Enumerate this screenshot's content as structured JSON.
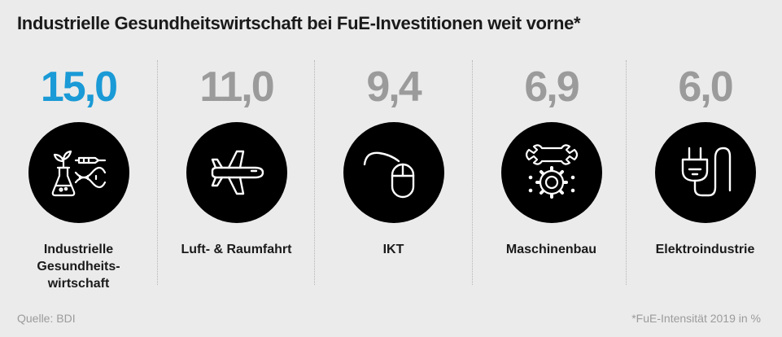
{
  "title": "Industrielle Gesundheitswirtschaft bei FuE-Investitionen weit vorne*",
  "chart_data": {
    "type": "table",
    "categories": [
      "Industrielle\nGesundheits-\nwirtschaft",
      "Luft- & Raumfahrt",
      "IKT",
      "Maschinenbau",
      "Elektroindustrie"
    ],
    "values": [
      "15,0",
      "11,0",
      "9,4",
      "6,9",
      "6,0"
    ],
    "highlight_color": "#1a9ad6",
    "value_color": "#9b9b9b"
  },
  "icons": [
    "biotech-icon",
    "airplane-icon",
    "computer-mouse-icon",
    "wrench-gear-icon",
    "power-plug-icon"
  ],
  "source": "Quelle: BDI",
  "note": "*FuE-Intensität 2019 in %"
}
